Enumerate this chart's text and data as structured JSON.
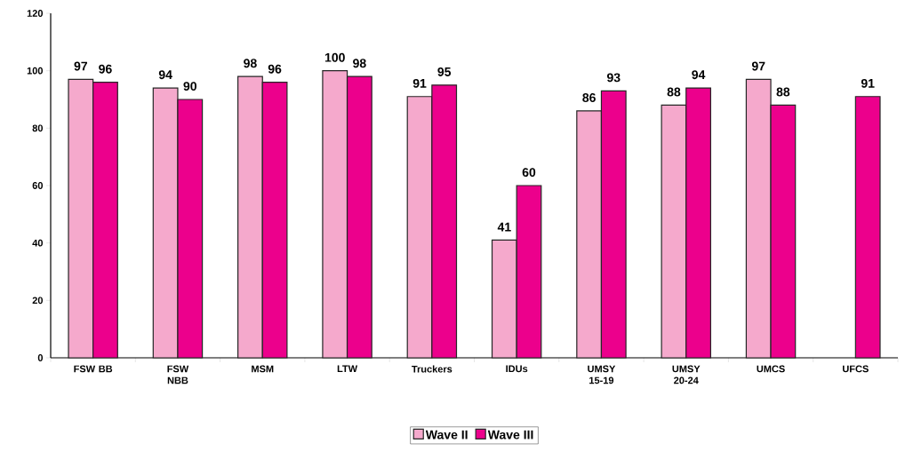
{
  "chart_data": {
    "type": "bar",
    "categories": [
      "FSW BB",
      "FSW NBB",
      "MSM",
      "LTW",
      "Truckers",
      "IDUs",
      "UMSY 15-19",
      "UMSY 20-24",
      "UMCS",
      "UFCS"
    ],
    "series": [
      {
        "name": "Wave II",
        "color": "#f5a9cc",
        "values": [
          97,
          94,
          98,
          100,
          91,
          41,
          86,
          88,
          97,
          null
        ]
      },
      {
        "name": "Wave III",
        "color": "#ec008c",
        "values": [
          96,
          90,
          96,
          98,
          95,
          60,
          93,
          94,
          88,
          91
        ]
      }
    ],
    "ylim": [
      0,
      120
    ],
    "yticks": [
      0,
      20,
      40,
      60,
      80,
      100,
      120
    ],
    "data_labels": true,
    "grid": false,
    "legend": "bottom"
  }
}
